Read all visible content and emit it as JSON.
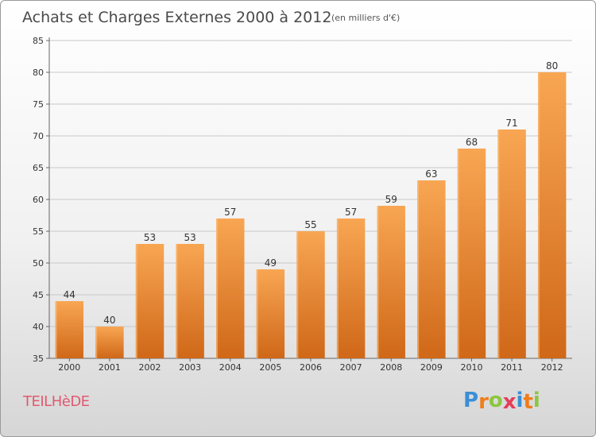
{
  "chart_data": {
    "type": "bar",
    "title": "Achats et Charges Externes 2000 à 2012",
    "subtitle": "(en milliers d'€)",
    "categories": [
      "2000",
      "2001",
      "2002",
      "2003",
      "2004",
      "2005",
      "2006",
      "2007",
      "2008",
      "2009",
      "2010",
      "2011",
      "2012"
    ],
    "values": [
      44,
      40,
      53,
      53,
      57,
      49,
      55,
      57,
      59,
      63,
      68,
      71,
      80
    ],
    "ylim": [
      35,
      85
    ],
    "yticks": [
      35,
      40,
      45,
      50,
      55,
      60,
      65,
      70,
      75,
      80,
      85
    ],
    "grid": true,
    "xlabel": "",
    "ylabel": "",
    "bar_color_top": "#f8a653",
    "bar_color_bottom": "#cf6818"
  },
  "footer": {
    "commune": "TEILHèDE",
    "logo_letters": [
      "P",
      "r",
      "o",
      "x",
      "i",
      "t",
      "i"
    ],
    "logo_colors": [
      "#3a8fd6",
      "#ef7d1a",
      "#8cc63f",
      "#e53d5b",
      "#3a8fd6",
      "#ef7d1a",
      "#8cc63f"
    ]
  }
}
